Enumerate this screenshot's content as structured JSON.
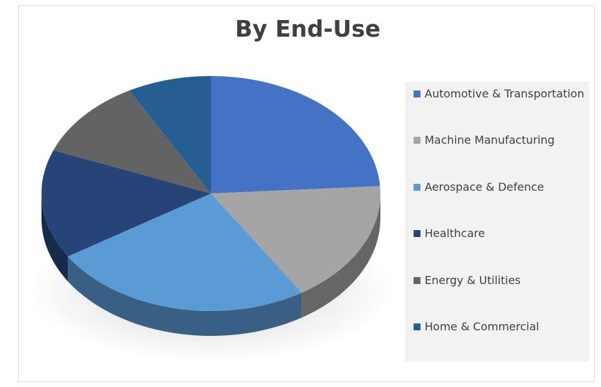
{
  "chart_data": {
    "type": "pie",
    "title": "By End-Use",
    "categories": [
      "Automotive & Transportation",
      "Machine Manufacturing",
      "Aerospace & Defence",
      "Healthcare",
      "Energy & Utilities",
      "Home & Commercial"
    ],
    "values": [
      24,
      17,
      25,
      15,
      11,
      8
    ],
    "colors": [
      "#4472c4",
      "#a5a5a5",
      "#5b9bd5",
      "#264478",
      "#636363",
      "#255e91"
    ],
    "legend_position": "right",
    "style": "3d"
  }
}
